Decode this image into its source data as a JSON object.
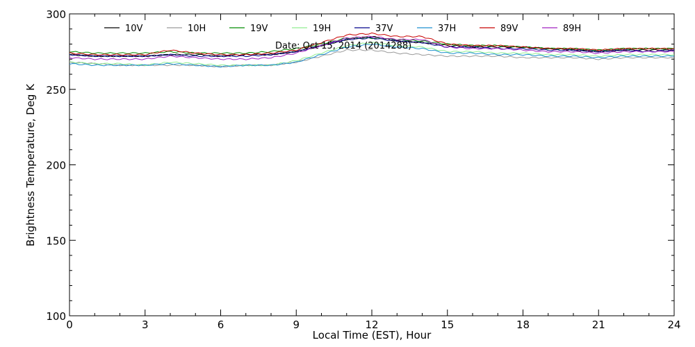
{
  "chart_data": {
    "type": "line",
    "title": "",
    "annotation": "Date: Oct 15, 2014 (2014288)",
    "xlabel": "Local Time (EST), Hour",
    "ylabel": "Brightness Temperature, Deg K",
    "xlim": [
      0,
      24
    ],
    "ylim": [
      100,
      300
    ],
    "xticks": [
      0,
      3,
      6,
      9,
      12,
      15,
      18,
      21,
      24
    ],
    "yticks": [
      100,
      150,
      200,
      250,
      300
    ],
    "grid": false,
    "legend_position": "top",
    "colors": {
      "10V": "#000000",
      "10H": "#9a9a9a",
      "19V": "#008c00",
      "19H": "#90ee90",
      "37V": "#00008b",
      "37H": "#1e90d0",
      "89V": "#c80000",
      "89H": "#a020c0"
    },
    "series": [
      {
        "name": "10V",
        "x": [
          0,
          1,
          2,
          3,
          4,
          5,
          6,
          7,
          8,
          9,
          10,
          11,
          12,
          13,
          14,
          15,
          16,
          17,
          18,
          19,
          20,
          21,
          22,
          23,
          24
        ],
        "y": [
          273,
          272,
          272,
          272,
          273,
          273,
          272,
          273,
          273,
          275,
          279,
          283,
          285,
          282,
          281,
          279,
          278,
          278,
          278,
          277,
          276,
          275,
          276,
          276,
          276
        ]
      },
      {
        "name": "10H",
        "x": [
          0,
          1,
          2,
          3,
          4,
          5,
          6,
          7,
          8,
          9,
          10,
          11,
          12,
          13,
          14,
          15,
          16,
          17,
          18,
          19,
          20,
          21,
          22,
          23,
          24
        ],
        "y": [
          268,
          267,
          266,
          266,
          266,
          266,
          265,
          266,
          266,
          268,
          272,
          276,
          276,
          274,
          273,
          272,
          272,
          272,
          271,
          271,
          271,
          270,
          271,
          271,
          271
        ]
      },
      {
        "name": "19V",
        "x": [
          0,
          1,
          2,
          3,
          4,
          5,
          6,
          7,
          8,
          9,
          10,
          11,
          12,
          13,
          14,
          15,
          16,
          17,
          18,
          19,
          20,
          21,
          22,
          23,
          24
        ],
        "y": [
          275,
          274,
          274,
          274,
          275,
          274,
          274,
          274,
          275,
          277,
          280,
          284,
          284,
          283,
          282,
          280,
          279,
          279,
          278,
          277,
          277,
          276,
          277,
          277,
          277
        ]
      },
      {
        "name": "19H",
        "x": [
          0,
          1,
          2,
          3,
          4,
          5,
          6,
          7,
          8,
          9,
          10,
          11,
          12,
          13,
          14,
          15,
          16,
          17,
          18,
          19,
          20,
          21,
          22,
          23,
          24
        ],
        "y": [
          268,
          267,
          267,
          266,
          268,
          267,
          266,
          266,
          266,
          269,
          274,
          279,
          281,
          279,
          278,
          275,
          275,
          274,
          274,
          273,
          273,
          272,
          273,
          273,
          273
        ]
      },
      {
        "name": "37V",
        "x": [
          0,
          1,
          2,
          3,
          4,
          5,
          6,
          7,
          8,
          9,
          10,
          11,
          12,
          13,
          14,
          15,
          16,
          17,
          18,
          19,
          20,
          21,
          22,
          23,
          24
        ],
        "y": [
          273,
          272,
          272,
          272,
          273,
          272,
          272,
          272,
          273,
          275,
          279,
          283,
          284,
          282,
          281,
          278,
          278,
          277,
          277,
          276,
          276,
          275,
          276,
          275,
          276
        ]
      },
      {
        "name": "37H",
        "x": [
          0,
          1,
          2,
          3,
          4,
          5,
          6,
          7,
          8,
          9,
          10,
          11,
          12,
          13,
          14,
          15,
          16,
          17,
          18,
          19,
          20,
          21,
          22,
          23,
          24
        ],
        "y": [
          267,
          266,
          266,
          266,
          267,
          266,
          265,
          266,
          266,
          268,
          273,
          278,
          280,
          278,
          277,
          274,
          274,
          273,
          273,
          272,
          272,
          271,
          272,
          272,
          272
        ]
      },
      {
        "name": "89V",
        "x": [
          0,
          1,
          2,
          3,
          4,
          5,
          6,
          7,
          8,
          9,
          10,
          11,
          12,
          13,
          14,
          15,
          16,
          17,
          18,
          19,
          20,
          21,
          22,
          23,
          24
        ],
        "y": [
          274,
          273,
          273,
          273,
          276,
          274,
          273,
          273,
          274,
          276,
          281,
          286,
          287,
          285,
          285,
          280,
          279,
          279,
          278,
          277,
          277,
          276,
          277,
          277,
          277
        ]
      },
      {
        "name": "89H",
        "x": [
          0,
          1,
          2,
          3,
          4,
          5,
          6,
          7,
          8,
          9,
          10,
          11,
          12,
          13,
          14,
          15,
          16,
          17,
          18,
          19,
          20,
          21,
          22,
          23,
          24
        ],
        "y": [
          271,
          270,
          270,
          270,
          272,
          271,
          270,
          270,
          271,
          274,
          279,
          284,
          285,
          283,
          283,
          278,
          277,
          277,
          276,
          275,
          275,
          274,
          275,
          275,
          275
        ]
      }
    ]
  }
}
